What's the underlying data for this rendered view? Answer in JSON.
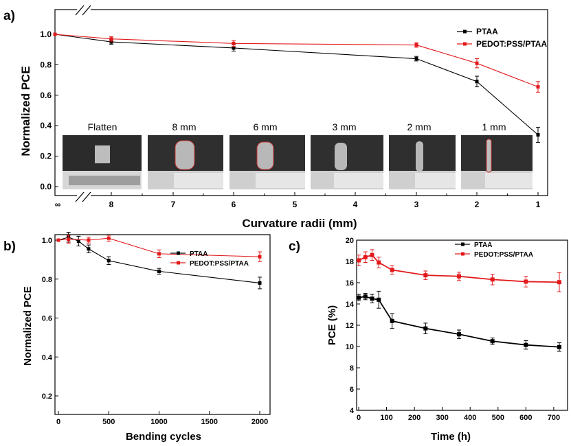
{
  "colors": {
    "ptaa": "#000000",
    "pedot": "#e31a1c"
  },
  "panels": {
    "a": "a)",
    "b": "b)",
    "c": "c)"
  },
  "photos": {
    "labels": [
      "Flatten",
      "8 mm",
      "6 mm",
      "3 mm",
      "2 mm",
      "1 mm"
    ]
  },
  "chart_data": [
    {
      "type": "line",
      "panel": "a",
      "xlabel": "Curvature radii (mm)",
      "ylabel": "Normalized PCE",
      "ylim": [
        -0.05,
        1.05
      ],
      "xticks": [
        "∞",
        "8",
        "7",
        "6",
        "5",
        "4",
        "3",
        "2",
        "1"
      ],
      "yticks": [
        "0.0",
        "0.2",
        "0.4",
        "0.6",
        "0.8",
        "1.0"
      ],
      "axis_break": true,
      "x": [
        "∞",
        8,
        6,
        3,
        2,
        1
      ],
      "series": [
        {
          "name": "PTAA",
          "values": [
            1.0,
            0.95,
            0.91,
            0.84,
            0.69,
            0.34
          ],
          "errors": [
            0,
            0.015,
            0.02,
            0.015,
            0.035,
            0.05
          ]
        },
        {
          "name": "PEDOT:PSS/PTAA",
          "values": [
            1.0,
            0.97,
            0.94,
            0.93,
            0.81,
            0.655
          ],
          "errors": [
            0,
            0.015,
            0.02,
            0.015,
            0.03,
            0.035
          ]
        }
      ],
      "legend": "top-right"
    },
    {
      "type": "line",
      "panel": "b",
      "xlabel": "Bending cycles",
      "ylabel": "Normalized PCE",
      "xlim": [
        0,
        2100
      ],
      "ylim": [
        0.1,
        1.1
      ],
      "xticks": [
        "0",
        "500",
        "1000",
        "1500",
        "2000"
      ],
      "yticks": [
        "0.2",
        "0.4",
        "0.6",
        "0.8",
        "1.0"
      ],
      "x": [
        0,
        100,
        200,
        300,
        500,
        1000,
        2000
      ],
      "series": [
        {
          "name": "PTAA",
          "values": [
            1.0,
            1.015,
            0.995,
            0.955,
            0.895,
            0.84,
            0.78
          ],
          "errors": [
            0,
            0.025,
            0.025,
            0.02,
            0.02,
            0.015,
            0.03
          ]
        },
        {
          "name": "PEDOT:PSS/PTAA",
          "values": [
            1.0,
            1.005,
            null,
            1.0,
            1.01,
            0.93,
            0.915
          ],
          "errors": [
            0,
            0.02,
            null,
            0.015,
            0.015,
            0.02,
            0.025
          ]
        }
      ],
      "legend": "top-right"
    },
    {
      "type": "line",
      "panel": "c",
      "xlabel": "Time (h)",
      "ylabel": "PCE (%)",
      "xlim": [
        0,
        730
      ],
      "ylim": [
        4,
        20
      ],
      "xticks": [
        "0",
        "100",
        "200",
        "300",
        "400",
        "500",
        "600",
        "700"
      ],
      "yticks": [
        "4",
        "6",
        "8",
        "10",
        "12",
        "14",
        "16",
        "18",
        "20"
      ],
      "x": [
        0,
        24,
        48,
        72,
        120,
        240,
        360,
        480,
        600,
        720
      ],
      "series": [
        {
          "name": "PTAA",
          "values": [
            14.6,
            14.7,
            14.5,
            14.4,
            12.4,
            11.7,
            11.15,
            10.5,
            10.15,
            9.95
          ],
          "errors": [
            0.3,
            0.3,
            0.4,
            0.8,
            0.7,
            0.5,
            0.4,
            0.3,
            0.4,
            0.4
          ]
        },
        {
          "name": "PEDOT:PSS/PTAA",
          "values": [
            18.1,
            18.4,
            18.6,
            17.9,
            17.2,
            16.7,
            16.6,
            16.3,
            16.1,
            16.05
          ],
          "errors": [
            0.5,
            0.5,
            0.5,
            0.5,
            0.4,
            0.4,
            0.4,
            0.5,
            0.5,
            0.9
          ]
        }
      ],
      "legend": "top-right"
    }
  ]
}
